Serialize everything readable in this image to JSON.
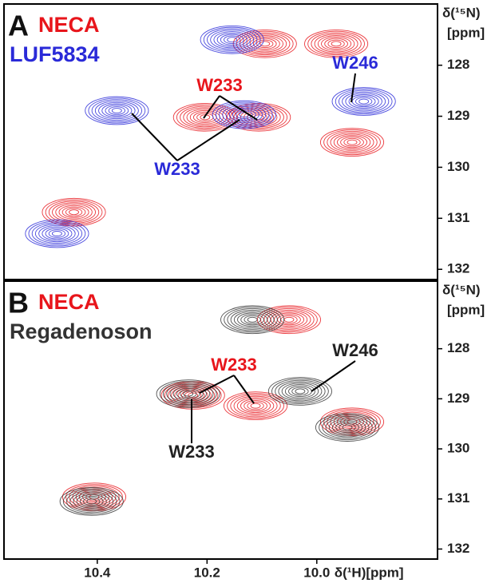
{
  "chart_data": [
    {
      "type": "contour",
      "panel": "A",
      "xlim": [
        10.57,
        9.78
      ],
      "ylim": [
        126.8,
        132.2
      ],
      "xticks": [
        10.4,
        10.2,
        {
          "value": 10.0,
          "label": "10.0"
        }
      ],
      "yticks": [
        128,
        129,
        130,
        131,
        132
      ],
      "y_label": [
        "δ(¹⁵N)",
        "[ppm]"
      ],
      "series": [
        {
          "name": "NECA",
          "color": "#e8151b",
          "x": [
            10.099,
            9.969,
            10.208,
            10.11,
            9.94,
            10.447
          ],
          "y": [
            127.58,
            127.58,
            129.02,
            129.02,
            129.51,
            130.88
          ]
        },
        {
          "name": "LUF5834",
          "color": "#2a2ad8",
          "x": [
            10.15,
            9.91,
            10.36,
            10.128,
            10.469
          ],
          "y": [
            127.5,
            128.71,
            128.89,
            128.97,
            131.3
          ]
        }
      ],
      "annotations": [
        {
          "text": "W233",
          "color": "#e8151b"
        },
        {
          "text": "W246",
          "color": "#2a2ad8"
        },
        {
          "text": "W233",
          "color": "#2a2ad8"
        }
      ]
    },
    {
      "type": "contour",
      "panel": "B",
      "xlim": [
        10.57,
        9.78
      ],
      "ylim": [
        126.65,
        132.2
      ],
      "xticks": [
        10.4,
        10.2,
        {
          "value": 10.0,
          "label": "10.0"
        }
      ],
      "yticks": [
        128,
        129,
        130,
        131,
        132
      ],
      "x_label": "δ(¹H)[ppm]",
      "y_label": [
        "δ(¹⁵N)",
        "[ppm]"
      ],
      "series": [
        {
          "name": "NECA",
          "color": "#e8151b",
          "x": [
            10.055,
            10.23,
            10.116,
            9.94,
            10.41
          ],
          "y": [
            127.42,
            128.93,
            129.14,
            129.46,
            130.96
          ]
        },
        {
          "name": "Regadenoson",
          "color": "#333333",
          "x": [
            10.113,
            10.23,
            10.026,
            9.94,
            10.406
          ],
          "y": [
            127.42,
            128.9,
            128.85,
            129.57,
            131.05
          ]
        }
      ],
      "annotations": [
        {
          "text": "W233",
          "color": "#e8151b"
        },
        {
          "text": "W246",
          "color": "#222222"
        },
        {
          "text": "W233",
          "color": "#222222"
        }
      ]
    }
  ]
}
